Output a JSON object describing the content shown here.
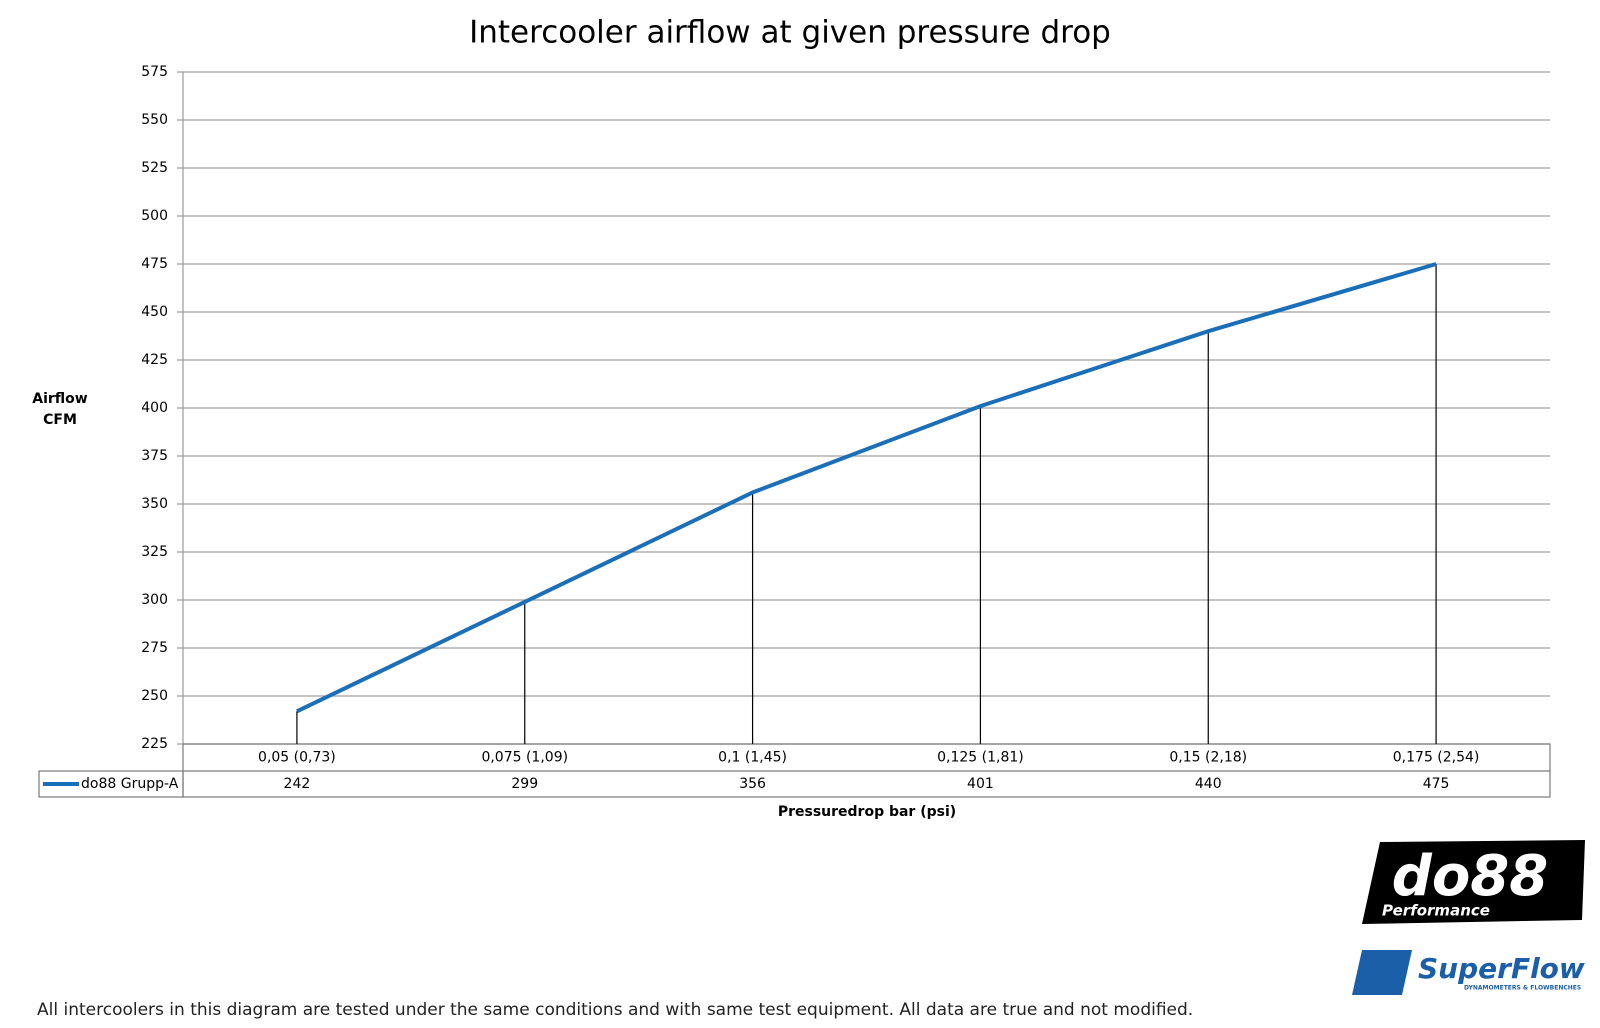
{
  "chart_data": {
    "type": "line",
    "title": "Intercooler airflow at given pressure drop",
    "y_label": [
      "Airflow",
      "CFM"
    ],
    "x_label": "Pressuredrop bar (psi)",
    "categories": [
      "0,05 (0,73)",
      "0,075 (1,09)",
      "0,1 (1,45)",
      "0,125 (1,81)",
      "0,15 (2,18)",
      "0,175 (2,54)"
    ],
    "series": [
      {
        "name": "do88 Grupp-A",
        "color": "#1b6fb8",
        "values": [
          242,
          299,
          356,
          401,
          440,
          475
        ]
      }
    ],
    "ylim": [
      225,
      575
    ],
    "yticks": [
      225,
      250,
      275,
      300,
      325,
      350,
      375,
      400,
      425,
      450,
      475,
      500,
      525,
      550,
      575
    ],
    "grid": true,
    "drop_lines": true,
    "data_table": true
  },
  "footnote": "All intercoolers in this diagram are tested under the same conditions and with same test equipment. All data are true and not modified.",
  "logos": {
    "do88": "do88",
    "do88_sub": "Performance",
    "superflow": "SuperFlow",
    "superflow_sub": "DYNAMOMETERS & FLOWBENCHES"
  }
}
